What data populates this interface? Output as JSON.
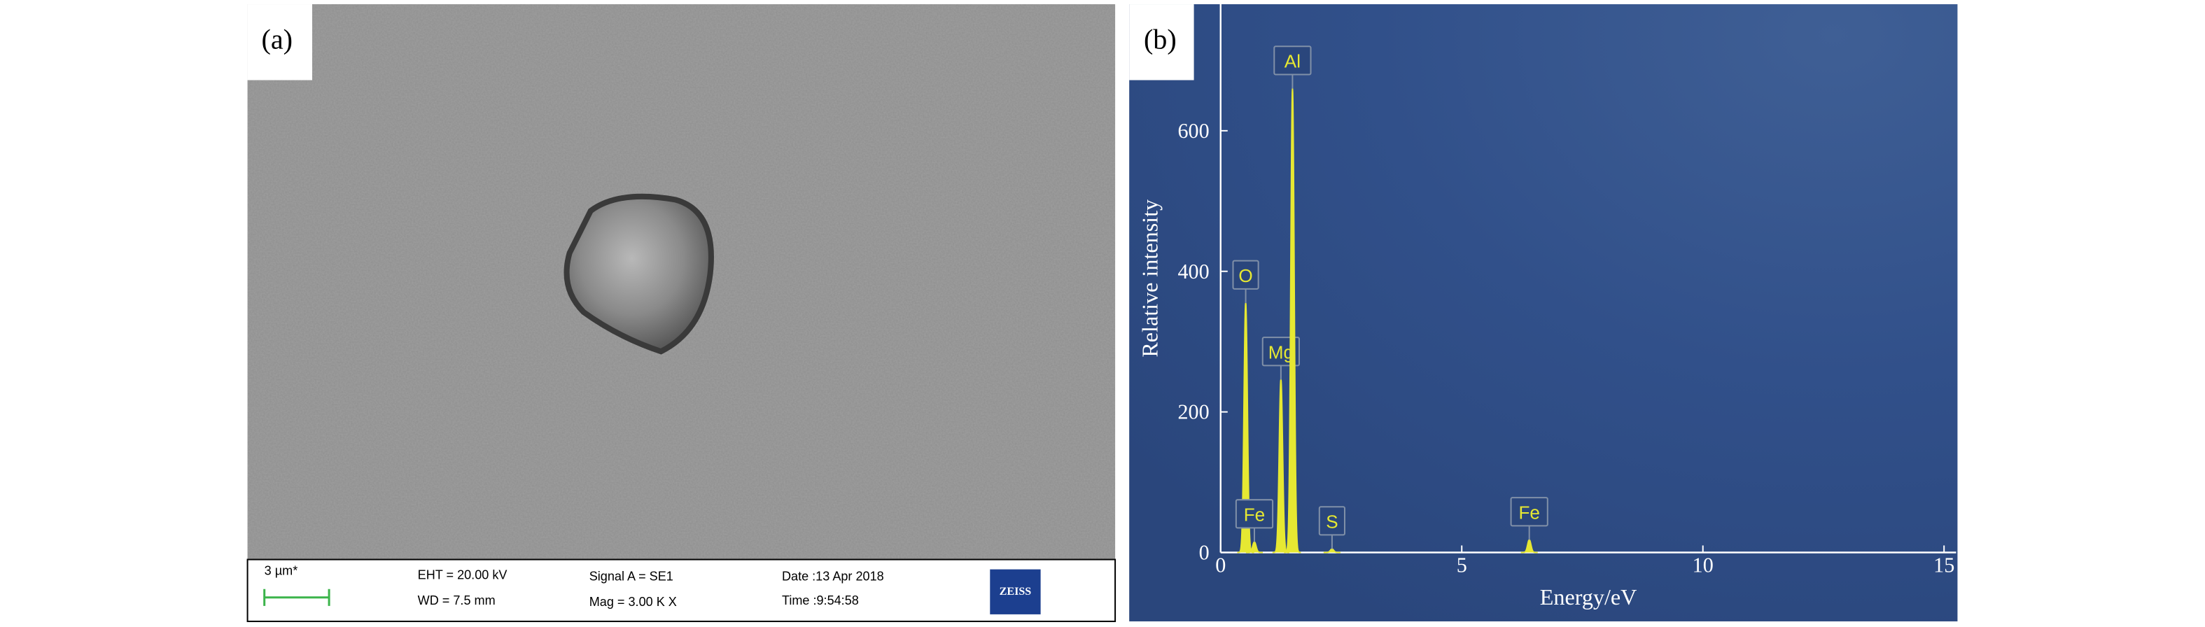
{
  "panel_a": {
    "label": "(a)",
    "info": {
      "scale": "3 µm*",
      "eht": "EHT = 20.00 kV",
      "wd": "WD = 7.5 mm",
      "signal": "Signal A = SE1",
      "mag": "Mag =    3.00 K X",
      "date": "Date :13 Apr 2018",
      "time": "Time :9:54:58",
      "logo": "ZEISS"
    }
  },
  "panel_b": {
    "label": "(b)"
  },
  "chart_data": {
    "type": "spectrum",
    "x_label": "Energy/eV",
    "y_label": "Relative intensity",
    "xlim": [
      0,
      15.25
    ],
    "ylim": [
      0,
      780
    ],
    "xticks": [
      0,
      5,
      10,
      15
    ],
    "yticks": [
      0,
      200,
      400,
      600
    ],
    "color": "#e6e832",
    "peaks": [
      {
        "label": "O",
        "energy": 0.52,
        "intensity": 355
      },
      {
        "label": "Fe",
        "energy": 0.7,
        "intensity": 15
      },
      {
        "label": "Mg",
        "energy": 1.25,
        "intensity": 246
      },
      {
        "label": "Al",
        "energy": 1.49,
        "intensity": 660
      },
      {
        "label": "S",
        "energy": 2.31,
        "intensity": 5
      },
      {
        "label": "Fe",
        "energy": 6.4,
        "intensity": 18
      }
    ]
  }
}
